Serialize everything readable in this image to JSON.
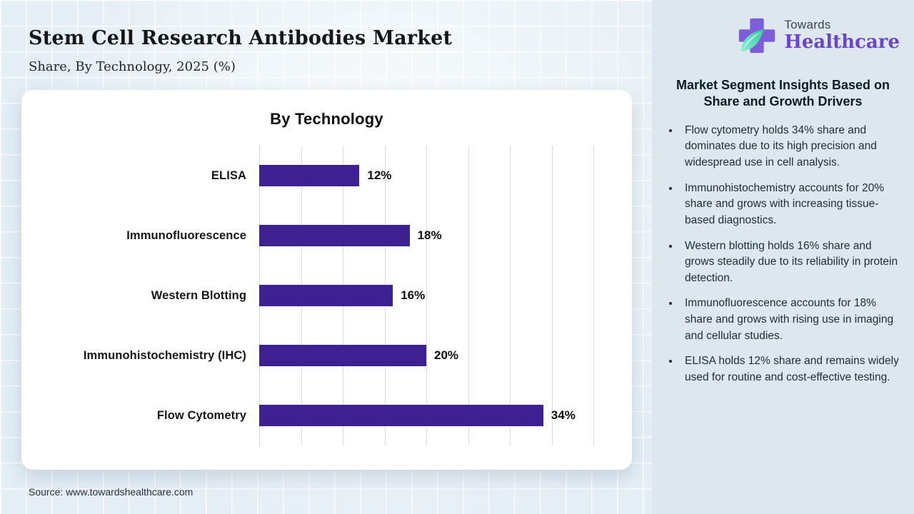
{
  "header": {
    "title": "Stem Cell Research Antibodies Market",
    "subtitle": "Share, By Technology, 2025 (%)"
  },
  "logo": {
    "line1": "Towards",
    "line2": "Healthcare",
    "cross_color": "#7e5ed8",
    "leaf_color_dark": "#2fc9a4",
    "leaf_color_light": "#8df0cd",
    "wordmark_color": "#6a45cd"
  },
  "chart_data": {
    "type": "bar",
    "orientation": "horizontal",
    "title": "By Technology",
    "categories": [
      "ELISA",
      "Immunofluorescence",
      "Western Blotting",
      "Immunohistochemistry (IHC)",
      "Flow Cytometry"
    ],
    "values": [
      12,
      18,
      16,
      20,
      34
    ],
    "value_labels": [
      "12%",
      "18%",
      "16%",
      "20%",
      "34%"
    ],
    "xlabel": "",
    "ylabel": "",
    "xlim": [
      0,
      40
    ],
    "gridline_step": 5,
    "grid": true,
    "legend_position": "none",
    "bar_color": "#3d2091"
  },
  "insights": {
    "heading": "Market Segment Insights Based on Share and Growth Drivers",
    "bullets": [
      "Flow cytometry holds 34% share and dominates due to its high precision and widespread use in cell analysis.",
      "Immunohistochemistry accounts for 20% share and grows with increasing tissue-based diagnostics.",
      "Western blotting holds 16% share and grows steadily due to its reliability in protein detection.",
      "Immunofluorescence accounts for 18% share and grows with rising use in imaging and cellular studies.",
      "ELISA holds 12% share and remains widely used for routine and cost-effective testing."
    ]
  },
  "footer": {
    "source": "Source: www.towardshealthcare.com"
  }
}
